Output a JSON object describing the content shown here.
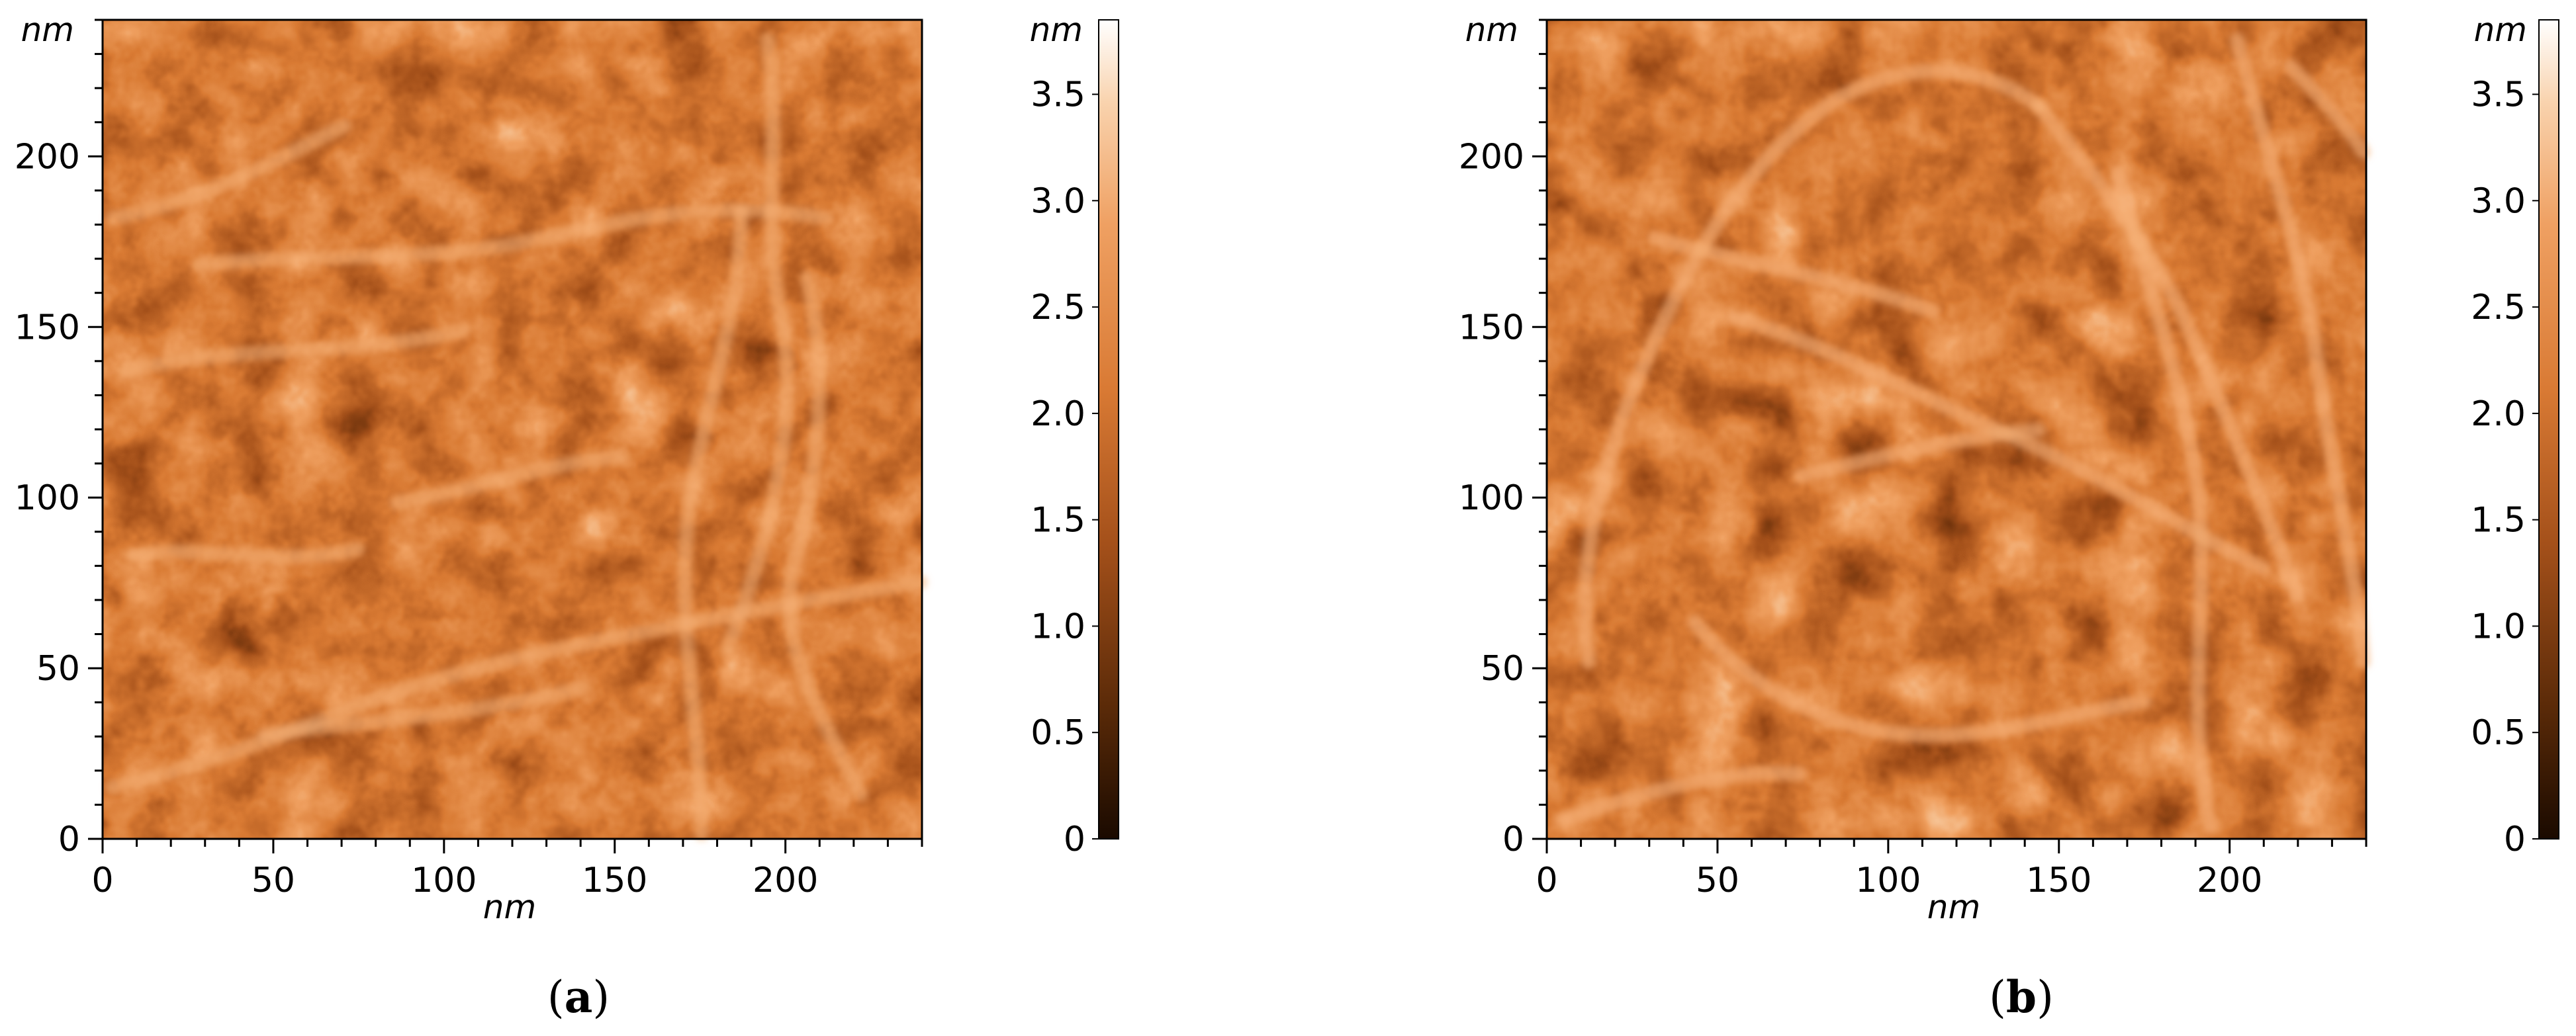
{
  "panels": [
    {
      "id": "a",
      "label": "a",
      "x_axis": {
        "unit": "nm",
        "ticks": [
          "0",
          "50",
          "100",
          "150",
          "200"
        ],
        "tick_values": [
          0,
          50,
          100,
          150,
          200
        ],
        "range": [
          0,
          240
        ]
      },
      "y_axis": {
        "unit": "nm",
        "ticks": [
          "0",
          "50",
          "100",
          "150",
          "200"
        ],
        "tick_values": [
          0,
          50,
          100,
          150,
          200
        ],
        "range": [
          0,
          240
        ]
      },
      "colorbar": {
        "unit": "nm",
        "ticks": [
          "0",
          "0.5",
          "1.0",
          "1.5",
          "2.0",
          "2.5",
          "3.0",
          "3.5"
        ],
        "tick_values": [
          0,
          0.5,
          1.0,
          1.5,
          2.0,
          2.5,
          3.0,
          3.5
        ],
        "range": [
          0,
          3.85
        ]
      }
    },
    {
      "id": "b",
      "label": "b",
      "x_axis": {
        "unit": "nm",
        "ticks": [
          "0",
          "50",
          "100",
          "150",
          "200"
        ],
        "tick_values": [
          0,
          50,
          100,
          150,
          200
        ],
        "range": [
          0,
          240
        ]
      },
      "y_axis": {
        "unit": "nm",
        "ticks": [
          "0",
          "50",
          "100",
          "150",
          "200"
        ],
        "tick_values": [
          0,
          50,
          100,
          150,
          200
        ],
        "range": [
          0,
          240
        ]
      },
      "colorbar": {
        "unit": "nm",
        "ticks": [
          "0",
          "0.5",
          "1.0",
          "1.5",
          "2.0",
          "2.5",
          "3.0",
          "3.5"
        ],
        "tick_values": [
          0,
          0.5,
          1.0,
          1.5,
          2.0,
          2.5,
          3.0,
          3.5
        ],
        "range": [
          0,
          3.85
        ]
      }
    }
  ],
  "colors": {
    "colormap": [
      "#1a0a00",
      "#5a2a08",
      "#a4501a",
      "#d97a34",
      "#efa062",
      "#f9d3ae",
      "#ffffff"
    ],
    "axis": "#000000"
  }
}
